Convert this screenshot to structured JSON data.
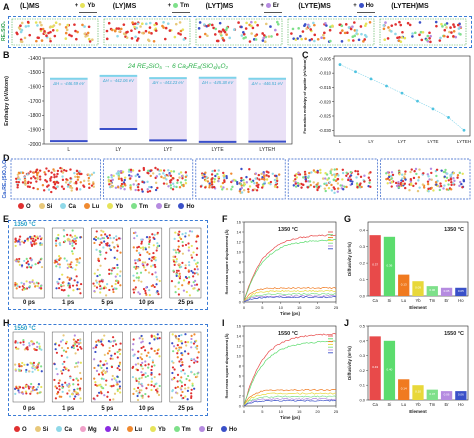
{
  "panel_labels": [
    "A",
    "B",
    "C",
    "D",
    "E",
    "F",
    "G",
    "H",
    "I",
    "J"
  ],
  "panelA": {
    "ylabel": "RE₂SiO₅",
    "stages": [
      "(L)MS",
      "(LY)MS",
      "(LYT)MS",
      "(LYTE)MS",
      "(LYTEH)MS"
    ],
    "additions": [
      "+ Yb",
      "+ Tm",
      "+ Er",
      "+ Ho"
    ],
    "addition_colors": [
      "#e6e35a",
      "#7ee08a",
      "#b58be0",
      "#3a50c8"
    ]
  },
  "panelB": {
    "ylabel": "Enthalpy (eV/atom)",
    "reaction": "24 RE₂SiO₅ → 6 Ca₂RE₈(SiO₄)₆O₂",
    "categories": [
      "L",
      "LY",
      "LYT",
      "LYTE",
      "LYTEH"
    ],
    "deltaH": [
      "ΔH = -446.59 eV",
      "ΔH = -442.06 eV",
      "ΔH = -443.23 eV",
      "ΔH = -445.38 eV",
      "ΔH = -446.51 eV"
    ],
    "yticks": [
      "-1400",
      "-1500",
      "-1600",
      "-1700",
      "-1800",
      "-1900",
      "-2000"
    ]
  },
  "panelC": {
    "ylabel": "Formation enthalpy of apatite (eV/atom)",
    "categories": [
      "L",
      "LY",
      "LYT",
      "LYTE",
      "LYTEH"
    ],
    "yticks": [
      "-0.005",
      "-0.010",
      "-0.015",
      "-0.020",
      "-0.025",
      "-0.030"
    ]
  },
  "panelD": {
    "ylabel": "Ca₂RE₈(SiO₄)₆O₂"
  },
  "legend1": [
    {
      "name": "O",
      "color": "#e03030"
    },
    {
      "name": "Si",
      "color": "#e8c87a"
    },
    {
      "name": "Ca",
      "color": "#8fd8e8"
    },
    {
      "name": "Lu",
      "color": "#f08a30"
    },
    {
      "name": "Yb",
      "color": "#e6e35a"
    },
    {
      "name": "Tm",
      "color": "#7ee08a"
    },
    {
      "name": "Er",
      "color": "#b58be0"
    },
    {
      "name": "Ho",
      "color": "#3a50c8"
    }
  ],
  "legend2": [
    {
      "name": "O",
      "color": "#e03030"
    },
    {
      "name": "Si",
      "color": "#e8c87a"
    },
    {
      "name": "Ca",
      "color": "#8fd8e8"
    },
    {
      "name": "Mg",
      "color": "#f0a0c8"
    },
    {
      "name": "Al",
      "color": "#8a2be2"
    },
    {
      "name": "Lu",
      "color": "#f08a30"
    },
    {
      "name": "Yb",
      "color": "#e6e35a"
    },
    {
      "name": "Tm",
      "color": "#7ee08a"
    },
    {
      "name": "Er",
      "color": "#b58be0"
    },
    {
      "name": "Ho",
      "color": "#3a50c8"
    }
  ],
  "panelE": {
    "temp": "1350 °C",
    "times": [
      "0 ps",
      "1 ps",
      "5 ps",
      "10 ps",
      "25 ps"
    ]
  },
  "panelH": {
    "temp": "1550 °C",
    "times": [
      "0 ps",
      "1 ps",
      "5 ps",
      "10 ps",
      "25 ps"
    ]
  },
  "panelF": {
    "temp": "1350 °C",
    "xlabel": "Time (ps)",
    "ylabel": "Root mean square displacement (Å)",
    "xticks": [
      "0",
      "5",
      "10",
      "15",
      "20",
      "25"
    ],
    "yticks": [
      "0",
      "2",
      "4",
      "6",
      "8",
      "10",
      "12",
      "14",
      "16"
    ]
  },
  "panelI": {
    "temp": "1550 °C",
    "xlabel": "Time (ps)",
    "ylabel": "Root mean square displacement (Å)",
    "xticks": [
      "0",
      "5",
      "10",
      "15",
      "20",
      "25"
    ],
    "yticks": [
      "0",
      "2",
      "4",
      "6",
      "8",
      "10",
      "12",
      "14",
      "16"
    ]
  },
  "panelG": {
    "temp": "1350 °C",
    "xlabel": "Element",
    "ylabel": "Diffusivity (m²/s)"
  },
  "panelJ": {
    "temp": "1550 °C",
    "xlabel": "Element",
    "ylabel": "Diffusivity (m²/s)"
  },
  "chart_data": [
    {
      "type": "line",
      "panel": "C",
      "categories": [
        "L",
        "LY",
        "LYT",
        "LYTE",
        "LYTEH"
      ],
      "x": [
        0,
        0.5,
        1,
        1.5,
        2,
        2.5,
        3,
        3.5,
        4
      ],
      "values": [
        -0.007,
        -0.0095,
        -0.012,
        -0.0145,
        -0.017,
        -0.0198,
        -0.0225,
        -0.0255,
        -0.03
      ],
      "ylim": [
        -0.032,
        -0.004
      ]
    },
    {
      "type": "bar",
      "panel": "G",
      "categories": [
        "Ca",
        "Si",
        "Lu",
        "Yb",
        "Tm",
        "Er",
        "Ho"
      ],
      "values": [
        0.37,
        0.36,
        0.13,
        0.09,
        0.06,
        0.05,
        0.05
      ],
      "colors": [
        "#e84a4a",
        "#5cdc6e",
        "#f07a20",
        "#e8d83a",
        "#7ee08a",
        "#b58be0",
        "#3a50c8"
      ],
      "ylim": [
        0,
        0.45
      ]
    },
    {
      "type": "bar",
      "panel": "J",
      "categories": [
        "Ca",
        "Si",
        "Lu",
        "Yb",
        "Tm",
        "Er",
        "Ho"
      ],
      "values": [
        0.43,
        0.4,
        0.14,
        0.1,
        0.07,
        0.06,
        0.06
      ],
      "colors": [
        "#e84a4a",
        "#5cdc6e",
        "#f07a20",
        "#e8d83a",
        "#7ee08a",
        "#b58be0",
        "#3a50c8"
      ],
      "ylim": [
        0,
        0.5
      ]
    },
    {
      "type": "line",
      "panel": "F",
      "xlim": [
        0,
        25
      ],
      "ylim": [
        0,
        16
      ],
      "series": [
        {
          "color": "#e84a4a",
          "plateau": 13.5
        },
        {
          "color": "#5cdc6e",
          "plateau": 12.5
        },
        {
          "color": "#f07a20",
          "plateau": 2.8
        },
        {
          "color": "#e8d83a",
          "plateau": 2.2
        },
        {
          "color": "#7ee08a",
          "plateau": 1.6
        },
        {
          "color": "#b58be0",
          "plateau": 1.2
        },
        {
          "color": "#3a50c8",
          "plateau": 1.0
        }
      ]
    },
    {
      "type": "line",
      "panel": "I",
      "xlim": [
        0,
        25
      ],
      "ylim": [
        0,
        16
      ],
      "series": [
        {
          "color": "#e84a4a",
          "plateau": 14.5
        },
        {
          "color": "#5cdc6e",
          "plateau": 13.0
        },
        {
          "color": "#f07a20",
          "plateau": 3.2
        },
        {
          "color": "#e8d83a",
          "plateau": 2.5
        },
        {
          "color": "#7ee08a",
          "plateau": 1.9
        },
        {
          "color": "#b58be0",
          "plateau": 1.4
        },
        {
          "color": "#3a50c8",
          "plateau": 1.1
        }
      ]
    }
  ]
}
